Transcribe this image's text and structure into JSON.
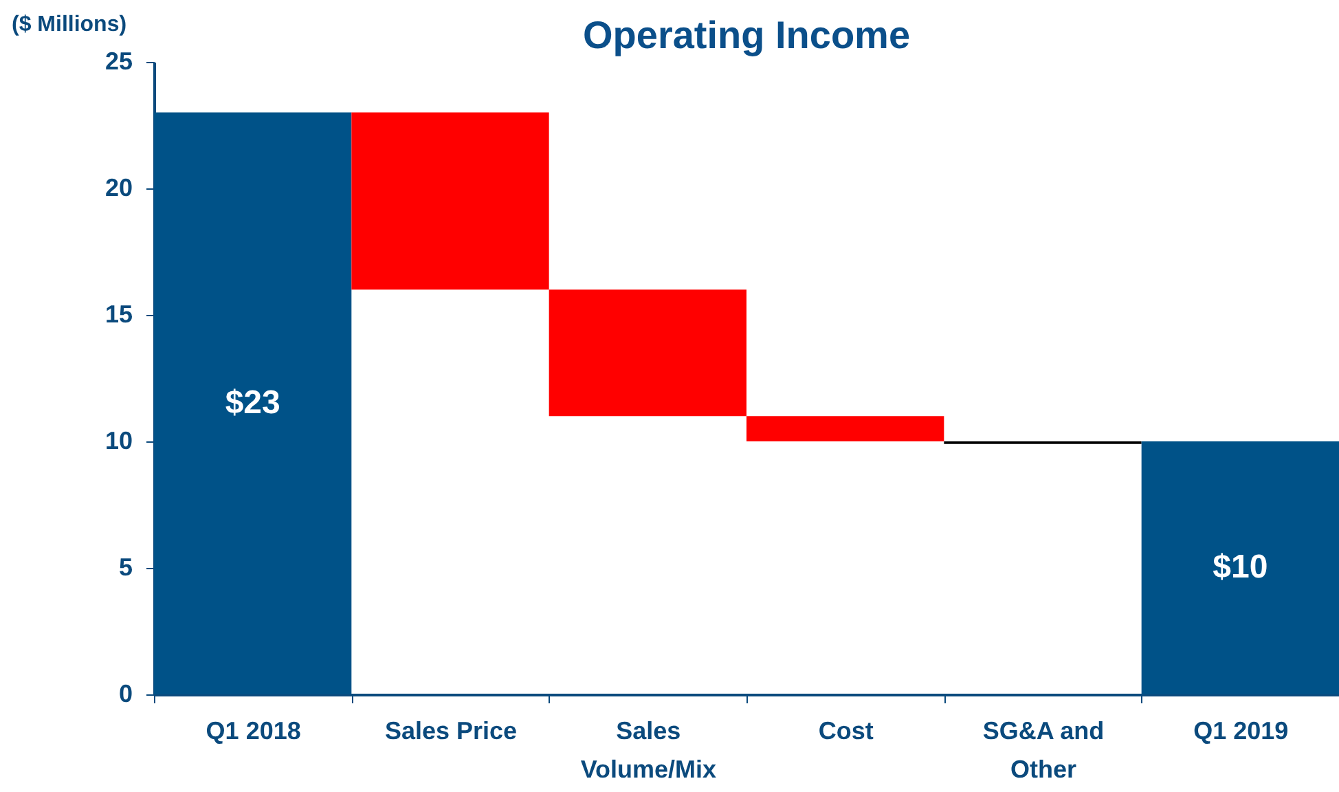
{
  "chart_data": {
    "type": "bar",
    "title": "Operating Income",
    "ylabel": "($ Millions)",
    "categories": [
      "Q1 2018",
      "Sales Price",
      "Sales Volume/Mix",
      "Cost",
      "SG&A and Other",
      "Q1 2019"
    ],
    "values": [
      23,
      7,
      5,
      1,
      0.1,
      10
    ],
    "base": [
      0,
      16,
      11,
      10,
      9.9,
      0
    ],
    "colors": [
      "#005288",
      "#ff0000",
      "#ff0000",
      "#ff0000",
      "#000000",
      "#005288"
    ],
    "value_labels": [
      "$23",
      null,
      null,
      null,
      null,
      "$10"
    ],
    "ylim": [
      0,
      25
    ],
    "yticks": [
      0,
      5,
      10,
      15,
      20,
      25
    ],
    "grid": false
  }
}
